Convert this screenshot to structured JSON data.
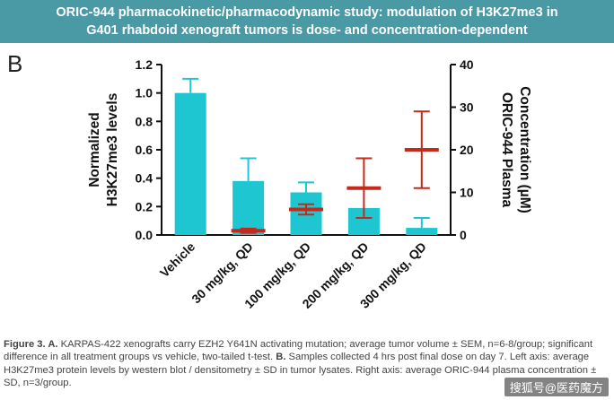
{
  "banner": {
    "line1": "ORIC-944 pharmacokinetic/pharmacodynamic study: modulation of H3K27me3 in",
    "line2": "G401 rhabdoid xenograft tumors is dose- and concentration-dependent"
  },
  "panel_letter": "B",
  "chart_data": {
    "type": "bar",
    "categories": [
      "Vehicle",
      "30 mg/kg, QD",
      "100 mg/kg, QD",
      "200 mg/kg, QD",
      "300 mg/kg, QD"
    ],
    "left_axis": {
      "label_lines": [
        "Normalized",
        "H3K27me3 levels"
      ],
      "ylim": [
        0,
        1.2
      ],
      "ticks": [
        "0.0",
        "0.2",
        "0.4",
        "0.6",
        "0.8",
        "1.0",
        "1.2"
      ]
    },
    "right_axis": {
      "label_lines": [
        "ORIC-944 Plasma",
        "Concentration (µM)"
      ],
      "ylim": [
        0,
        40
      ],
      "ticks": [
        "0",
        "10",
        "20",
        "30",
        "40"
      ]
    },
    "series": [
      {
        "kind": "bar",
        "axis": "left",
        "color": "#1ec6d2",
        "values": [
          1.0,
          0.38,
          0.3,
          0.19,
          0.05
        ],
        "error": [
          0.1,
          0.16,
          0.07,
          0.0,
          0.07
        ]
      },
      {
        "kind": "mean_sd",
        "axis": "right",
        "color": "#c42a1a",
        "values": [
          null,
          1.0,
          6.0,
          11.0,
          20.0
        ],
        "error": [
          null,
          0.5,
          1.2,
          7.0,
          9.0
        ]
      }
    ],
    "grid": false
  },
  "caption": {
    "bold_a": "Figure 3. A.",
    "text_a": " KARPAS-422 xenografts carry EZH2 Y641N activating mutation; average tumor volume ± SEM, n=6-8/group; significant difference in all treatment groups vs vehicle, two-tailed t-test. ",
    "bold_b": "B.",
    "text_b": " Samples collected 4 hrs post final dose on day 7. Left axis: average H3K27me3 protein levels by western blot / densitometry ± SD in tumor lysates. Right axis: average ORIC-944 plasma concentration ± SD, n=3/group."
  },
  "watermark": "搜狐号@医药魔方"
}
